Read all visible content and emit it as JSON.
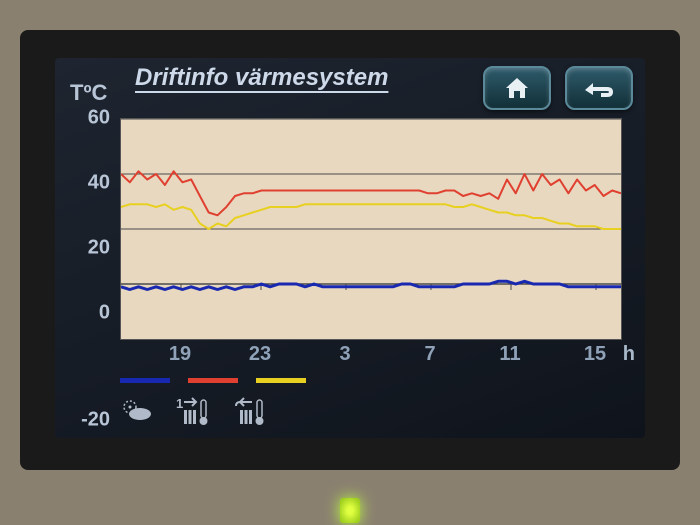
{
  "header": {
    "title": "Driftinfo värmesystem",
    "y_axis_label": "TºC"
  },
  "chart": {
    "type": "line",
    "background_color": "#e8d8c0",
    "gridline_color": "#4a4a4a",
    "ylim": [
      -20,
      60
    ],
    "yticks": [
      60,
      40,
      20,
      0,
      -20
    ],
    "xticks": [
      "19",
      "23",
      "3",
      "7",
      "11",
      "15"
    ],
    "x_unit": "h",
    "series": [
      {
        "name": "red",
        "color": "#e04030",
        "line_width": 2,
        "values": [
          40,
          37,
          41,
          38,
          40,
          36,
          41,
          37,
          38,
          32,
          26,
          25,
          28,
          32,
          33,
          33,
          34,
          34,
          34,
          34,
          34,
          34,
          34,
          34,
          34,
          34,
          34,
          34,
          34,
          34,
          34,
          34,
          34,
          34,
          34,
          33,
          33,
          34,
          34,
          32,
          33,
          32,
          33,
          31,
          38,
          33,
          40,
          34,
          40,
          36,
          38,
          33,
          38,
          34,
          36,
          32,
          34,
          33
        ]
      },
      {
        "name": "yellow",
        "color": "#e8d020",
        "line_width": 2,
        "values": [
          28,
          29,
          29,
          29,
          28,
          29,
          27,
          28,
          27,
          22,
          20,
          22,
          21,
          24,
          25,
          26,
          27,
          28,
          28,
          28,
          28,
          29,
          29,
          29,
          29,
          29,
          29,
          29,
          29,
          29,
          29,
          29,
          29,
          29,
          29,
          29,
          29,
          29,
          28,
          28,
          29,
          28,
          27,
          26,
          26,
          25,
          25,
          24,
          24,
          23,
          22,
          22,
          21,
          21,
          21,
          20,
          20,
          20
        ]
      },
      {
        "name": "blue",
        "color": "#1828b0",
        "line_width": 3,
        "values": [
          -1,
          -2,
          -1,
          -2,
          -1,
          -2,
          -1,
          -2,
          -1,
          -2,
          -1,
          -2,
          -1,
          -2,
          -1,
          -1,
          0,
          -1,
          0,
          0,
          0,
          -1,
          0,
          -1,
          -1,
          -1,
          -1,
          -1,
          -1,
          -1,
          -1,
          -1,
          0,
          0,
          -1,
          -1,
          -1,
          -1,
          -1,
          0,
          0,
          0,
          0,
          1,
          1,
          0,
          1,
          0,
          0,
          0,
          0,
          -1,
          -1,
          -1,
          -1,
          -1,
          -1,
          -1
        ]
      }
    ]
  },
  "legend": {
    "colors": [
      "#1828b0",
      "#e04030",
      "#e8d020"
    ]
  },
  "footer": {
    "icons": [
      "outdoor-temp-icon",
      "radiator-supply-icon",
      "radiator-return-icon"
    ]
  }
}
